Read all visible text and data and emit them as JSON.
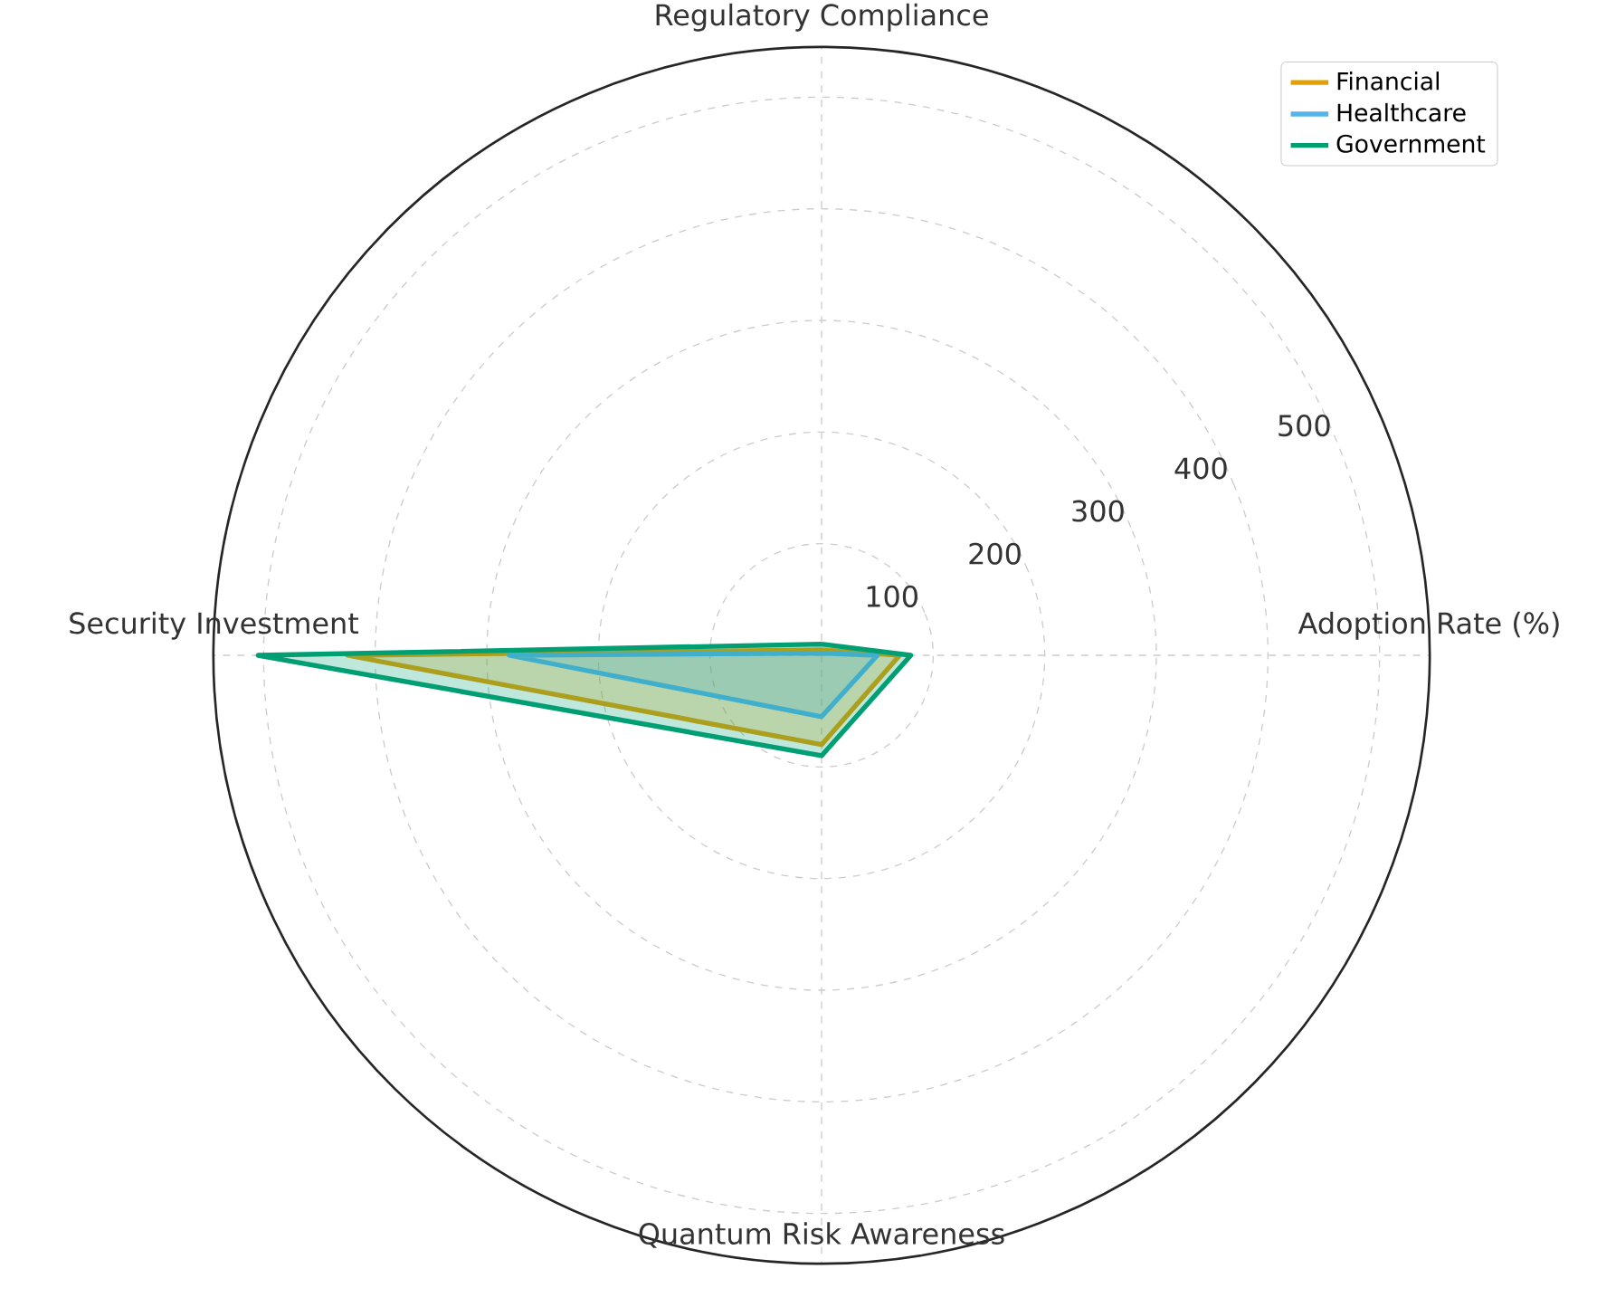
{
  "chart_data": {
    "type": "radar",
    "categories": [
      "Regulatory Compliance",
      "Adoption Rate (%)",
      "Quantum Risk Awareness",
      "Security Investment"
    ],
    "series": [
      {
        "name": "Financial",
        "color": "#e69f00",
        "values": [
          5,
          70,
          80,
          425
        ]
      },
      {
        "name": "Healthcare",
        "color": "#56b4e9",
        "values": [
          2,
          50,
          55,
          280
        ]
      },
      {
        "name": "Government",
        "color": "#009e73",
        "values": [
          10,
          80,
          90,
          505
        ]
      }
    ],
    "ylim": [
      0,
      545
    ],
    "yticks": [
      100,
      200,
      300,
      400,
      500
    ],
    "grid": true,
    "legend": "top right"
  }
}
